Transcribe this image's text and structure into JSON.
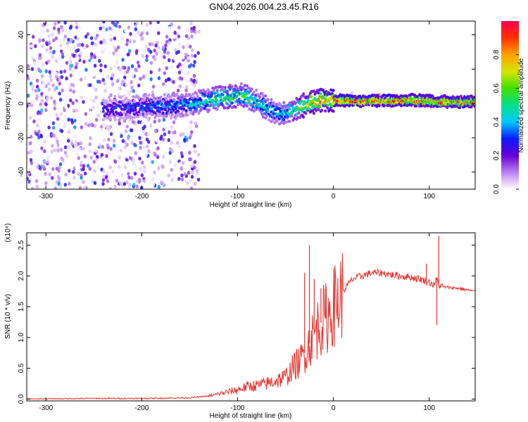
{
  "figure_title": "GN04.2026.004.23.45.R16",
  "chart_data": [
    {
      "type": "heatmap",
      "title": "GN04.2026.004.23.45.R16",
      "xlabel": "Height of straight line (km)",
      "ylabel": "Frequency (Hz)",
      "xlim": [
        -320,
        148
      ],
      "ylim": [
        -50,
        48
      ],
      "xticks": [
        -300,
        -200,
        -100,
        0,
        100
      ],
      "xtick_labels": [
        "-300",
        "-200",
        "-100",
        "0",
        "100"
      ],
      "yticks": [
        -40,
        -20,
        0,
        20,
        40
      ],
      "ytick_labels": [
        "-40",
        "-20",
        "0",
        "20",
        "40"
      ],
      "colorbar": {
        "label": "Normalized spectral amplitude",
        "range": [
          0,
          1
        ],
        "ticks": [
          0.0,
          0.2,
          0.4,
          0.6,
          0.8
        ],
        "tick_labels": [
          "0.0",
          "0.2",
          "0.4",
          "0.6",
          "0.8"
        ]
      },
      "ridge": {
        "x": [
          -240,
          -200,
          -160,
          -130,
          -110,
          -95,
          -80,
          -65,
          -50,
          -40,
          -25,
          -10,
          0,
          20,
          50,
          80,
          100,
          120,
          148
        ],
        "y": [
          -3,
          -2,
          -1,
          2,
          4,
          5,
          1,
          -4,
          -6,
          -3,
          0,
          2,
          2,
          1.5,
          1.5,
          2,
          1.5,
          1,
          1
        ],
        "peak_amplitude": [
          0.3,
          0.35,
          0.4,
          0.5,
          0.6,
          0.55,
          0.5,
          0.45,
          0.5,
          0.6,
          0.8,
          0.9,
          0.9,
          0.95,
          0.95,
          0.9,
          0.85,
          0.9,
          0.85
        ]
      },
      "noise_region_x": [
        -320,
        -140
      ]
    },
    {
      "type": "line",
      "xlabel": "Height of straight line (km)",
      "ylabel": "SNR (10 * v/v)",
      "scale_label": "(x10⁴)",
      "xlim": [
        -320,
        148
      ],
      "ylim": [
        -0.03,
        2.7
      ],
      "xticks": [
        -300,
        -200,
        -100,
        0,
        100
      ],
      "xtick_labels": [
        "-300",
        "-200",
        "-100",
        "0",
        "100"
      ],
      "yticks": [
        0.0,
        0.5,
        1.0,
        1.5,
        2.0,
        2.5
      ],
      "ytick_labels": [
        "0.0",
        "0.5",
        "1.0",
        "1.5",
        "2.0",
        "2.5"
      ],
      "series": [
        {
          "name": "SNR",
          "color": "#e8302c",
          "x": [
            -320,
            -250,
            -200,
            -150,
            -130,
            -115,
            -100,
            -90,
            -80,
            -70,
            -60,
            -50,
            -45,
            -40,
            -35,
            -30,
            -25,
            -20,
            -15,
            -10,
            -5,
            0,
            5,
            10,
            15,
            20,
            30,
            40,
            50,
            60,
            70,
            80,
            90,
            100,
            105,
            108,
            110,
            115,
            130,
            148
          ],
          "y": [
            0.0,
            0.01,
            0.01,
            0.02,
            0.05,
            0.1,
            0.15,
            0.2,
            0.22,
            0.25,
            0.3,
            0.35,
            0.45,
            0.55,
            0.6,
            0.75,
            0.9,
            1.05,
            1.2,
            1.3,
            1.35,
            1.5,
            1.6,
            1.75,
            1.85,
            1.95,
            2.0,
            2.05,
            2.05,
            2.02,
            2.0,
            1.98,
            1.95,
            1.9,
            1.85,
            1.95,
            1.85,
            1.82,
            1.8,
            1.75
          ],
          "spikes": [
            {
              "x": -30,
              "y": 2.05
            },
            {
              "x": -25,
              "y": 2.5
            },
            {
              "x": -20,
              "y": 1.95
            },
            {
              "x": -13,
              "y": 1.8
            },
            {
              "x": -8,
              "y": 1.7
            },
            {
              "x": 97,
              "y": 2.2
            },
            {
              "x": 108,
              "y": 1.2
            },
            {
              "x": 110,
              "y": 2.65
            }
          ]
        }
      ]
    }
  ]
}
